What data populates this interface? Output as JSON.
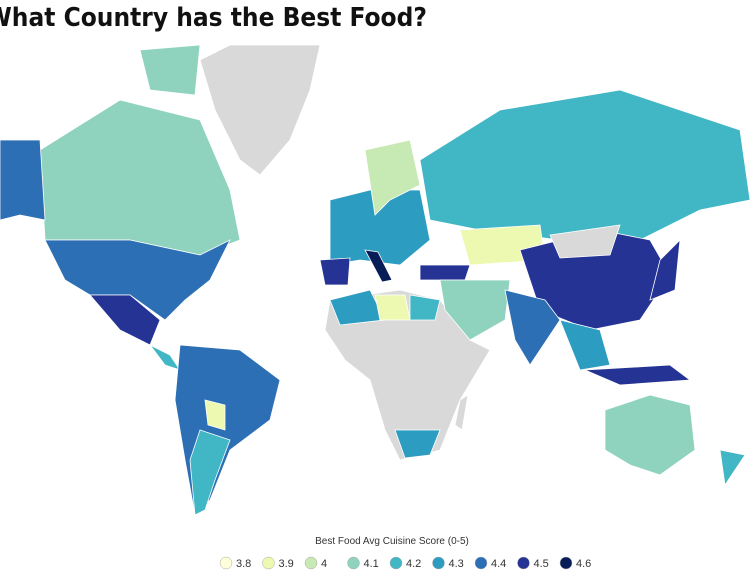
{
  "title": "What Country has the Best Food?",
  "legend": {
    "title": "Best Food Avg Cuisine Score (0-5)",
    "items": [
      {
        "value": 3.8,
        "color": "#ffffd9"
      },
      {
        "value": 3.9,
        "color": "#edf8b1"
      },
      {
        "value": 4,
        "color": "#c7e9b4"
      },
      {
        "value": 4.1,
        "color": "#8fd3be"
      },
      {
        "value": 4.2,
        "color": "#41b6c4"
      },
      {
        "value": 4.3,
        "color": "#2c9cc0"
      },
      {
        "value": 4.4,
        "color": "#2c6fb5"
      },
      {
        "value": 4.5,
        "color": "#253494"
      },
      {
        "value": 4.6,
        "color": "#081d58"
      }
    ]
  }
}
